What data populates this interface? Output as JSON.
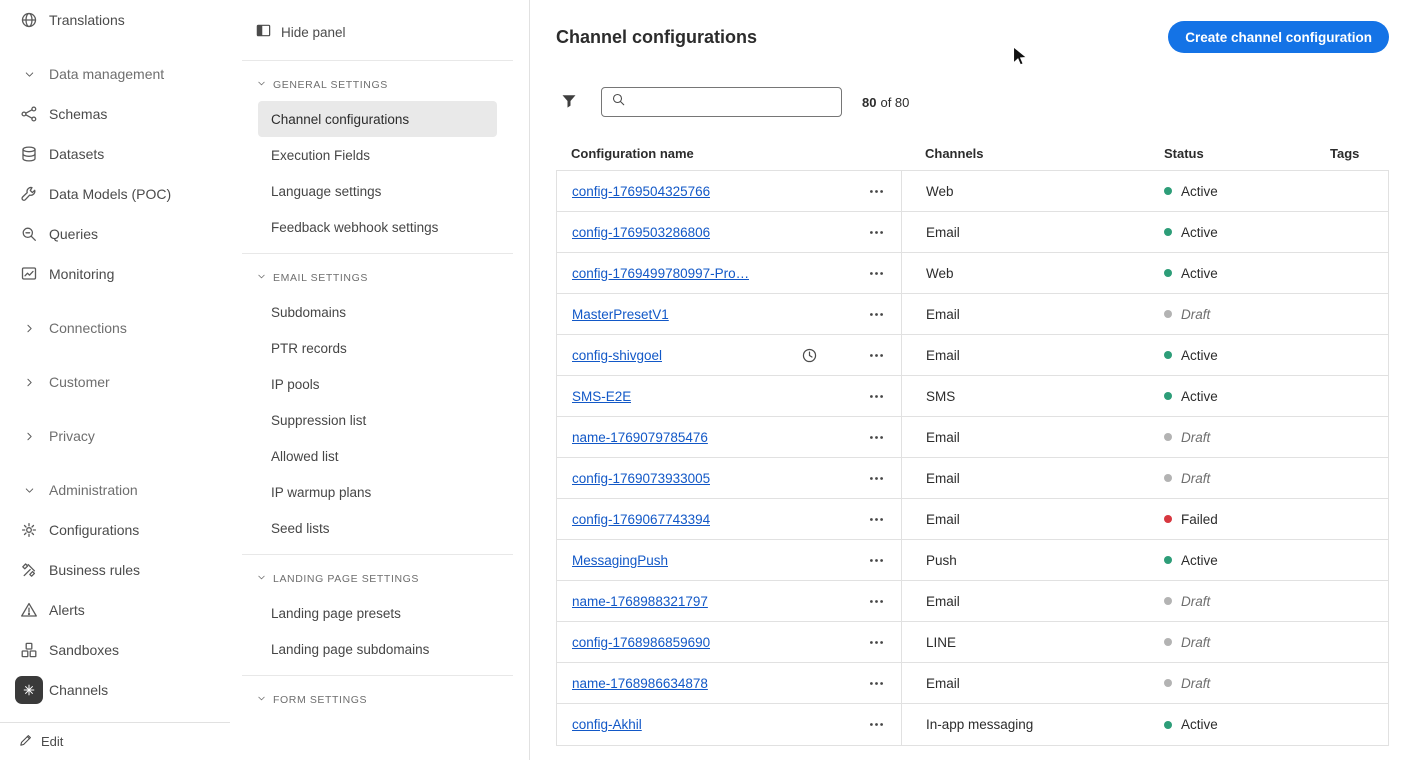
{
  "colors": {
    "accent_blue": "#1473e6",
    "link_blue": "#1258c7",
    "status_active": "#2d9d78",
    "status_draft": "#b3b3b3",
    "status_failed": "#d7373f"
  },
  "sidebar": {
    "items": [
      {
        "kind": "item",
        "icon": "globe-icon",
        "label": "Translations"
      },
      {
        "kind": "section-open",
        "icon": "chevron-down-icon",
        "label": "Data management"
      },
      {
        "kind": "item",
        "icon": "schemas-icon",
        "label": "Schemas"
      },
      {
        "kind": "item",
        "icon": "datasets-icon",
        "label": "Datasets"
      },
      {
        "kind": "item",
        "icon": "data-models-icon",
        "label": "Data Models (POC)"
      },
      {
        "kind": "item",
        "icon": "queries-icon",
        "label": "Queries"
      },
      {
        "kind": "item",
        "icon": "monitoring-icon",
        "label": "Monitoring"
      },
      {
        "kind": "section-closed",
        "icon": "chevron-right-icon",
        "label": "Connections"
      },
      {
        "kind": "section-closed",
        "icon": "chevron-right-icon",
        "label": "Customer"
      },
      {
        "kind": "section-closed",
        "icon": "chevron-right-icon",
        "label": "Privacy"
      },
      {
        "kind": "section-open",
        "icon": "chevron-down-icon",
        "label": "Administration"
      },
      {
        "kind": "item",
        "icon": "configurations-icon",
        "label": "Configurations"
      },
      {
        "kind": "item",
        "icon": "business-rules-icon",
        "label": "Business rules"
      },
      {
        "kind": "item",
        "icon": "alerts-icon",
        "label": "Alerts"
      },
      {
        "kind": "item",
        "icon": "sandboxes-icon",
        "label": "Sandboxes"
      },
      {
        "kind": "item",
        "icon": "channels-icon",
        "label": "Channels",
        "selected": true
      }
    ],
    "footer": {
      "icon": "edit-icon",
      "label": "Edit"
    }
  },
  "panel": {
    "hide_button": {
      "icon": "hide-panel-icon",
      "label": "Hide panel"
    },
    "sections": [
      {
        "title": "GENERAL SETTINGS",
        "items": [
          {
            "label": "Channel configurations",
            "selected": true
          },
          {
            "label": "Execution Fields"
          },
          {
            "label": "Language settings"
          },
          {
            "label": "Feedback webhook settings"
          }
        ]
      },
      {
        "title": "EMAIL SETTINGS",
        "items": [
          {
            "label": "Subdomains"
          },
          {
            "label": "PTR records"
          },
          {
            "label": "IP pools"
          },
          {
            "label": "Suppression list"
          },
          {
            "label": "Allowed list"
          },
          {
            "label": "IP warmup plans"
          },
          {
            "label": "Seed lists"
          }
        ]
      },
      {
        "title": "LANDING PAGE SETTINGS",
        "items": [
          {
            "label": "Landing page presets"
          },
          {
            "label": "Landing page subdomains"
          }
        ]
      },
      {
        "title": "FORM SETTINGS",
        "items": []
      }
    ]
  },
  "main": {
    "title": "Channel configurations",
    "create_button_label": "Create channel configuration",
    "search_placeholder": "",
    "count_bold": "80",
    "count_rest": "of 80",
    "table": {
      "headers": [
        "Configuration name",
        "Channels",
        "Status",
        "Tags"
      ],
      "rows": [
        {
          "name": "config-1769504325766",
          "channel": "Web",
          "status": "Active",
          "status_type": "active"
        },
        {
          "name": "config-1769503286806",
          "channel": "Email",
          "status": "Active",
          "status_type": "active"
        },
        {
          "name": "config-1769499780997-Pro…",
          "channel": "Web",
          "status": "Active",
          "status_type": "active"
        },
        {
          "name": "MasterPresetV1",
          "channel": "Email",
          "status": "Draft",
          "status_type": "draft"
        },
        {
          "name": "config-shivgoel",
          "channel": "Email",
          "status": "Active",
          "status_type": "active",
          "clock": true
        },
        {
          "name": "SMS-E2E",
          "channel": "SMS",
          "status": "Active",
          "status_type": "active"
        },
        {
          "name": "name-1769079785476",
          "channel": "Email",
          "status": "Draft",
          "status_type": "draft"
        },
        {
          "name": "config-1769073933005",
          "channel": "Email",
          "status": "Draft",
          "status_type": "draft"
        },
        {
          "name": "config-1769067743394",
          "channel": "Email",
          "status": "Failed",
          "status_type": "failed"
        },
        {
          "name": "MessagingPush",
          "channel": "Push",
          "status": "Active",
          "status_type": "active"
        },
        {
          "name": "name-1768988321797",
          "channel": "Email",
          "status": "Draft",
          "status_type": "draft"
        },
        {
          "name": "config-1768986859690",
          "channel": "LINE",
          "status": "Draft",
          "status_type": "draft"
        },
        {
          "name": "name-1768986634878",
          "channel": "Email",
          "status": "Draft",
          "status_type": "draft"
        },
        {
          "name": "config-Akhil",
          "channel": "In-app messaging",
          "status": "Active",
          "status_type": "active"
        }
      ]
    }
  }
}
